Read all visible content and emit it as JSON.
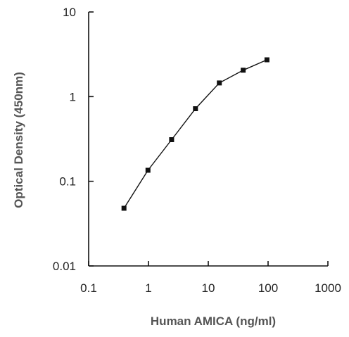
{
  "chart_data": {
    "type": "scatter",
    "title": "",
    "xlabel": "Human AMICA (ng/ml)",
    "ylabel": "Optical Density (450nm)",
    "x_scale": "log",
    "y_scale": "log",
    "xlim": [
      0.1,
      1000
    ],
    "ylim": [
      0.01,
      10
    ],
    "x_ticks": [
      0.1,
      1,
      10,
      100,
      1000
    ],
    "x_tick_labels": [
      "0.1",
      "1",
      "10",
      "100",
      "1000"
    ],
    "y_ticks": [
      0.01,
      0.1,
      1,
      10
    ],
    "y_tick_labels": [
      "0.01",
      "0.1",
      "1",
      "10"
    ],
    "grid": false,
    "legend": "none",
    "line_style": "connected",
    "colors": {
      "series": "#111111",
      "axis": "#111111",
      "axis_title": "#555555"
    },
    "series": [
      {
        "x": [
          0.39,
          0.98,
          2.44,
          6.1,
          15.3,
          38.3,
          95.7
        ],
        "y": [
          0.048,
          0.135,
          0.31,
          0.72,
          1.45,
          2.05,
          2.72
        ]
      }
    ]
  }
}
